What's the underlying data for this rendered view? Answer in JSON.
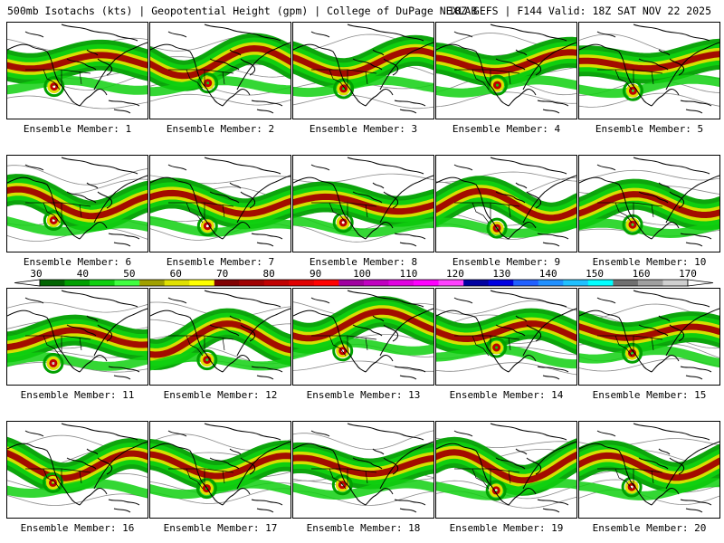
{
  "header": {
    "left": "500mb Isotachs (kts) | Geopotential Height (gpm) | College of DuPage NEXLAB",
    "right": "18Z GEFS | F144 Valid: 18Z SAT NOV 22 2025"
  },
  "members": [
    {
      "label": "Ensemble Member: 1"
    },
    {
      "label": "Ensemble Member: 2"
    },
    {
      "label": "Ensemble Member: 3"
    },
    {
      "label": "Ensemble Member: 4"
    },
    {
      "label": "Ensemble Member: 5"
    },
    {
      "label": "Ensemble Member: 6"
    },
    {
      "label": "Ensemble Member: 7"
    },
    {
      "label": "Ensemble Member: 8"
    },
    {
      "label": "Ensemble Member: 9"
    },
    {
      "label": "Ensemble Member: 10"
    },
    {
      "label": "Ensemble Member: 11"
    },
    {
      "label": "Ensemble Member: 12"
    },
    {
      "label": "Ensemble Member: 13"
    },
    {
      "label": "Ensemble Member: 14"
    },
    {
      "label": "Ensemble Member: 15"
    },
    {
      "label": "Ensemble Member: 16"
    },
    {
      "label": "Ensemble Member: 17"
    },
    {
      "label": "Ensemble Member: 18"
    },
    {
      "label": "Ensemble Member: 19"
    },
    {
      "label": "Ensemble Member: 20"
    }
  ],
  "colorbar": {
    "ticks": [
      "30",
      "40",
      "50",
      "60",
      "70",
      "80",
      "90",
      "100",
      "110",
      "120",
      "130",
      "140",
      "150",
      "160",
      "170"
    ],
    "colors": [
      "#006400",
      "#00a000",
      "#10d010",
      "#40ff40",
      "#a0a000",
      "#e0e000",
      "#ffff00",
      "#800000",
      "#a00000",
      "#c00000",
      "#e00000",
      "#ff0000",
      "#a000a0",
      "#c000c0",
      "#e000e0",
      "#ff00ff",
      "#ff40ff",
      "#0000a0",
      "#0000e0",
      "#2060ff",
      "#2090ff",
      "#20c0ff",
      "#00ffff",
      "#707070",
      "#a0a0a0",
      "#d0d0d0"
    ]
  }
}
